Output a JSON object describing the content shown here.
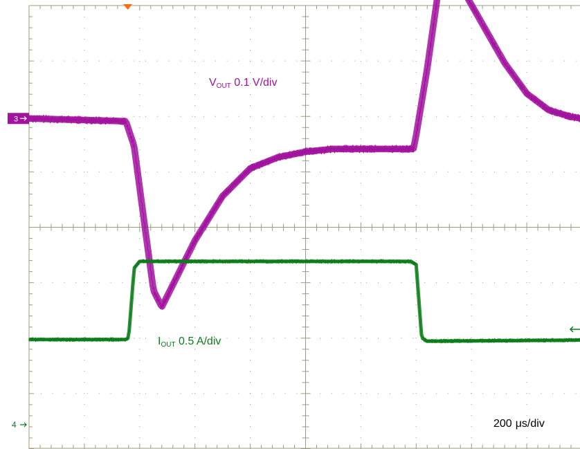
{
  "chart_data": {
    "type": "line",
    "title": "",
    "grid": true,
    "x_axis": {
      "unit": "µs",
      "scale_label_value": "200",
      "scale_label_unit": "μs/div",
      "divisions": 10,
      "range": [
        0,
        2000
      ]
    },
    "series": [
      {
        "name": "VOUT",
        "channel": "3",
        "color": "#a1139e",
        "label_main": "V",
        "label_sub": "OUT",
        "label_rest": " 0.1 V/div",
        "units_per_div": 0.1,
        "unit": "V",
        "band_width_div": 0.15,
        "points": [
          [
            0,
            0.0
          ],
          [
            350,
            -0.005
          ],
          [
            380,
            -0.05
          ],
          [
            420,
            -0.2
          ],
          [
            450,
            -0.31
          ],
          [
            480,
            -0.34
          ],
          [
            520,
            -0.3
          ],
          [
            600,
            -0.22
          ],
          [
            700,
            -0.14
          ],
          [
            800,
            -0.09
          ],
          [
            900,
            -0.07
          ],
          [
            1000,
            -0.06
          ],
          [
            1100,
            -0.055
          ],
          [
            1200,
            -0.055
          ],
          [
            1390,
            -0.055
          ],
          [
            1400,
            -0.03
          ],
          [
            1440,
            0.09
          ],
          [
            1480,
            0.23
          ],
          [
            1520,
            0.26
          ],
          [
            1560,
            0.24
          ],
          [
            1640,
            0.17
          ],
          [
            1720,
            0.1
          ],
          [
            1800,
            0.045
          ],
          [
            1880,
            0.015
          ],
          [
            1960,
            0.003
          ],
          [
            2000,
            0.0
          ]
        ]
      },
      {
        "name": "IOUT",
        "channel": "4",
        "color": "#0c7c1a",
        "label_main": "I",
        "label_sub": "OUT",
        "label_rest": " 0.5 A/div",
        "units_per_div": 0.5,
        "unit": "A",
        "band_width_div": 0.08,
        "points": [
          [
            0,
            0.425
          ],
          [
            350,
            0.425
          ],
          [
            360,
            0.44
          ],
          [
            380,
            1.07
          ],
          [
            400,
            1.13
          ],
          [
            1380,
            1.13
          ],
          [
            1400,
            1.1
          ],
          [
            1420,
            0.44
          ],
          [
            1440,
            0.41
          ],
          [
            2000,
            0.42
          ]
        ]
      }
    ],
    "trigger_marker_color": "#ff6a13",
    "right_marker_color": "#0c7c1a"
  }
}
